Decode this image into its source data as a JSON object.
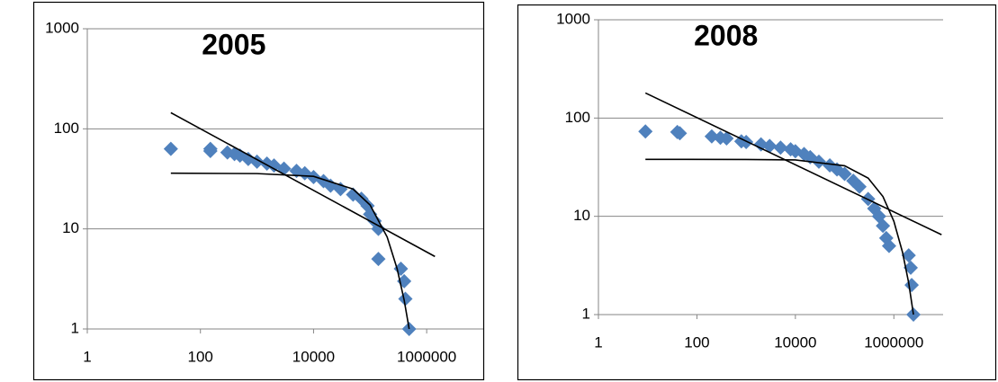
{
  "chart_data": [
    {
      "type": "scatter",
      "title": "2005",
      "log_x": true,
      "log_y": true,
      "grid": true,
      "xlim": [
        1,
        10000000
      ],
      "ylim": [
        1,
        1000
      ],
      "xticks": [
        1,
        100,
        10000,
        1000000
      ],
      "yticks": [
        1,
        10,
        100,
        1000
      ],
      "series": [
        {
          "color": "#4f81bd",
          "x": [
            30,
            150,
            150,
            300,
            400,
            500,
            700,
            1000,
            1500,
            2000,
            3000,
            5000,
            7000,
            10000,
            15000,
            20000,
            30000,
            50000,
            70000,
            90000,
            100000,
            120000,
            140000,
            140000,
            350000,
            400000,
            420000,
            490000
          ],
          "values": [
            63,
            63,
            60,
            58,
            56,
            54,
            50,
            47,
            45,
            43,
            40,
            38,
            36,
            33,
            30,
            27,
            25,
            22,
            20,
            17,
            14,
            12,
            10,
            5,
            4,
            3,
            2,
            1
          ]
        },
        {
          "type": "line",
          "color": "#000000",
          "x": [
            30,
            1400000
          ],
          "values": [
            145,
            5.3
          ]
        },
        {
          "type": "line",
          "color": "#000000",
          "x": [
            30,
            1000,
            10000,
            50000,
            100000,
            200000,
            300000,
            400000,
            490000
          ],
          "values": [
            36,
            35.7,
            33.5,
            25,
            17.3,
            8.3,
            4,
            1.94,
            1
          ]
        }
      ]
    },
    {
      "type": "scatter",
      "title": "2008",
      "log_x": true,
      "log_y": true,
      "grid": true,
      "xlim": [
        1,
        10000000
      ],
      "ylim": [
        1,
        1000
      ],
      "xticks": [
        1,
        100,
        10000,
        1000000
      ],
      "yticks": [
        1,
        10,
        100,
        1000
      ],
      "series": [
        {
          "color": "#4f81bd",
          "x": [
            9,
            40,
            45,
            200,
            300,
            400,
            800,
            1000,
            2000,
            3000,
            5000,
            8000,
            10000,
            15000,
            20000,
            30000,
            50000,
            70000,
            100000,
            150000,
            200000,
            300000,
            400000,
            500000,
            600000,
            700000,
            800000,
            2000000,
            2200000,
            2300000,
            2500000
          ],
          "values": [
            73,
            72,
            70,
            65,
            63,
            62,
            58,
            57,
            54,
            52,
            50,
            48,
            46,
            43,
            40,
            36,
            33,
            30,
            27,
            23,
            20,
            15,
            12,
            10,
            8,
            6,
            5,
            4,
            3,
            2,
            1
          ]
        },
        {
          "type": "line",
          "color": "#000000",
          "x": [
            9,
            9300000
          ],
          "values": [
            180,
            6.5
          ]
        },
        {
          "type": "line",
          "color": "#000000",
          "x": [
            9,
            1000,
            10000,
            100000,
            300000,
            600000,
            1000000,
            1500000,
            2000000,
            2500000
          ],
          "values": [
            38,
            37.9,
            37.5,
            32.7,
            24.5,
            15.9,
            8.9,
            4.3,
            2.1,
            1
          ]
        }
      ]
    }
  ]
}
